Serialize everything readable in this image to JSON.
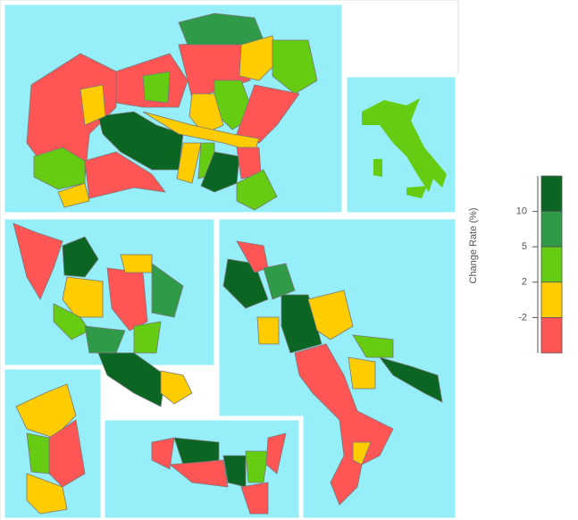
{
  "legend": {
    "title": "Change Rate (%)",
    "ticks": [
      10,
      5,
      2,
      -2
    ],
    "colors": [
      "#0b6623",
      "#2f9a48",
      "#66cc11",
      "#ffcc00",
      "#ff5555"
    ]
  }
}
